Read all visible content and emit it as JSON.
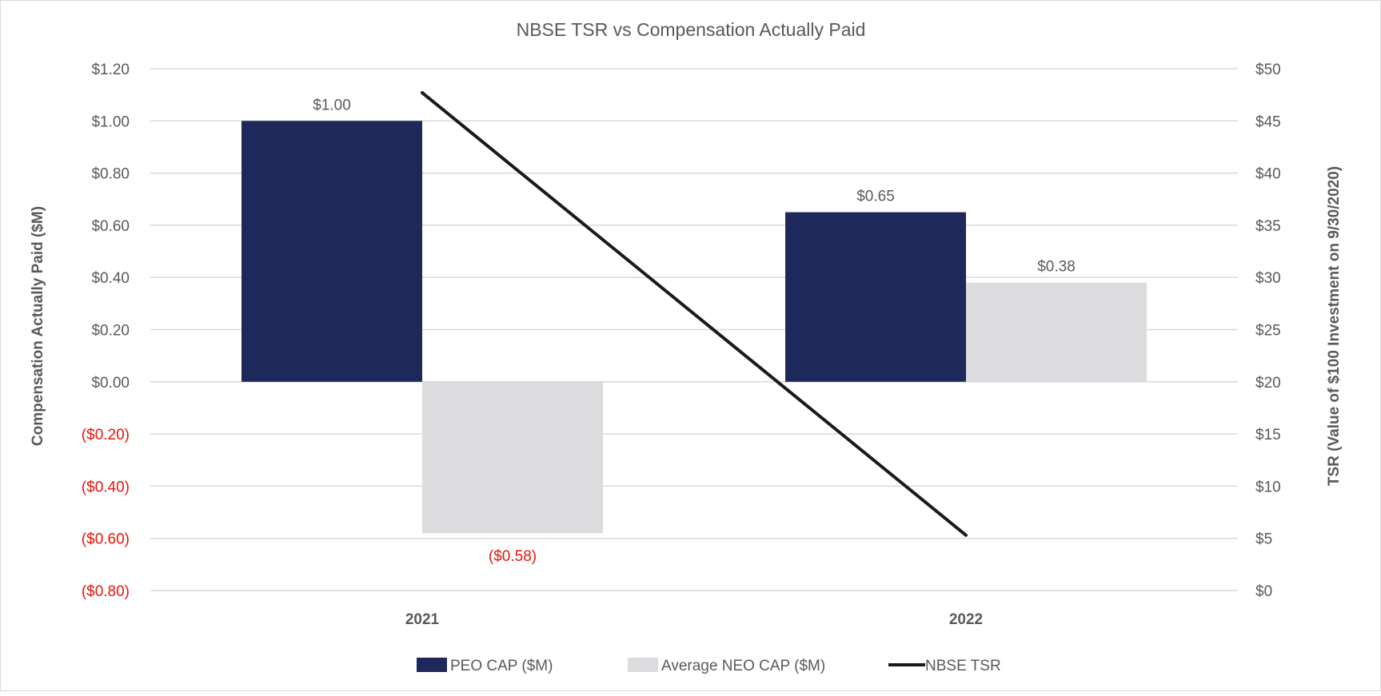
{
  "chart_data": {
    "type": "bar+line",
    "title": "NBSE TSR vs Compensation Actually Paid",
    "categories": [
      "2021",
      "2022"
    ],
    "ylabel": "Compensation Actually Paid ($M)",
    "y2label": "TSR (Value of $100 Investment on 9/30/2020)",
    "ylim": [
      -0.8,
      1.2
    ],
    "y2lim": [
      0,
      50
    ],
    "yticks": [
      "$1.20",
      "$1.00",
      "$0.80",
      "$0.60",
      "$0.40",
      "$0.20",
      "$0.00",
      "($0.20)",
      "($0.40)",
      "($0.60)",
      "($0.80)"
    ],
    "y2ticks": [
      "$50",
      "$45",
      "$40",
      "$35",
      "$30",
      "$25",
      "$20",
      "$15",
      "$10",
      "$5",
      "$0"
    ],
    "grid": true,
    "legend_placement": "bottom",
    "series": [
      {
        "name": "PEO CAP ($M)",
        "type": "bar",
        "axis": "left",
        "color": "#1f285a",
        "values": [
          1.0,
          0.65
        ],
        "labels": [
          "$1.00",
          "$0.65"
        ]
      },
      {
        "name": "Average NEO CAP ($M)",
        "type": "bar",
        "axis": "left",
        "color": "#dcdcde",
        "values": [
          -0.58,
          0.38
        ],
        "labels": [
          "($0.58)",
          "$0.38"
        ]
      },
      {
        "name": "NBSE TSR",
        "type": "line",
        "axis": "right",
        "color": "#1a1a1a",
        "values": [
          47.7,
          5.3
        ]
      }
    ],
    "negative_color": "#e8140c",
    "text_color": "#595959"
  }
}
